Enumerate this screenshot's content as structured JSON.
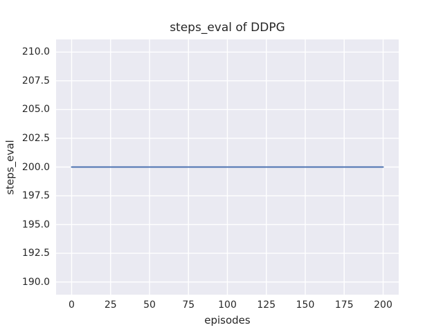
{
  "chart_data": {
    "type": "line",
    "title": "steps_eval of DDPG",
    "xlabel": "episodes",
    "ylabel": "steps_eval",
    "series": [
      {
        "name": "steps_eval",
        "color": "#4C72B0",
        "x": [
          0,
          200
        ],
        "values": [
          200,
          200
        ]
      }
    ],
    "xlim": [
      -10,
      210
    ],
    "ylim": [
      188.9,
      211.1
    ],
    "xticks": [
      0,
      25,
      50,
      75,
      100,
      125,
      150,
      175,
      200
    ],
    "xtick_labels": [
      "0",
      "25",
      "50",
      "75",
      "100",
      "125",
      "150",
      "175",
      "200"
    ],
    "yticks": [
      190.0,
      192.5,
      195.0,
      197.5,
      200.0,
      202.5,
      205.0,
      207.5,
      210.0
    ],
    "ytick_labels": [
      "190.0",
      "192.5",
      "195.0",
      "197.5",
      "200.0",
      "202.5",
      "205.0",
      "207.5",
      "210.0"
    ],
    "grid": true,
    "legend_position": "none",
    "colors": {
      "figure_bg": "#FFFFFF",
      "plot_bg": "#EAEAF2",
      "grid": "#FFFFFF",
      "text": "#262626",
      "line": "#4C72B0"
    }
  }
}
